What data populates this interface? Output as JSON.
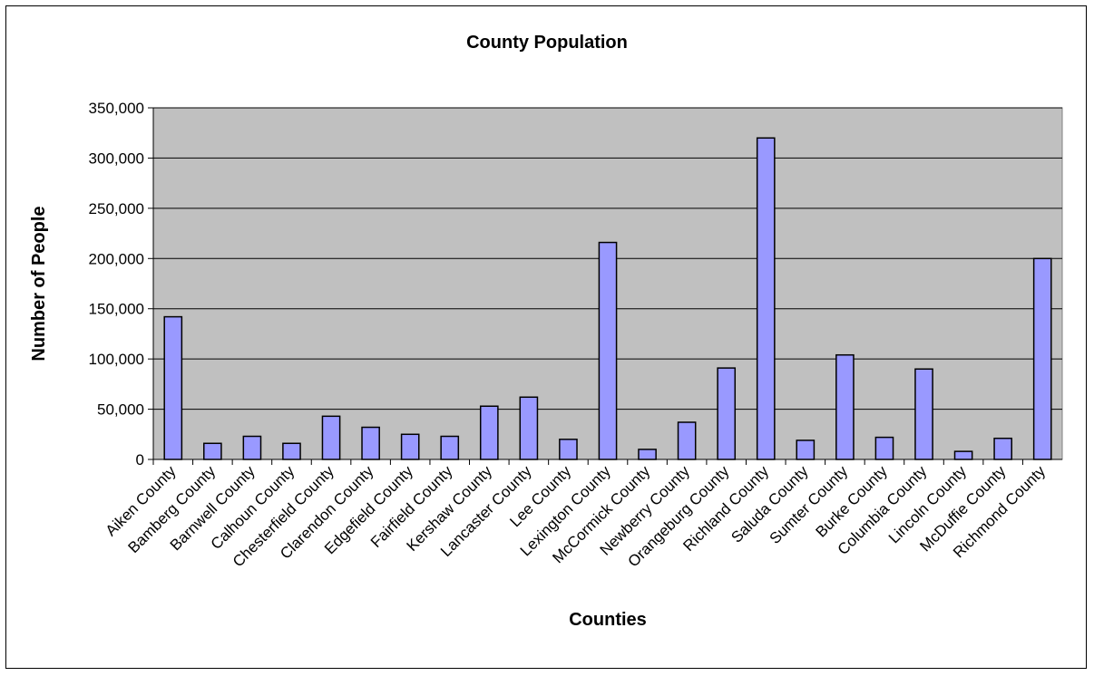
{
  "chart_data": {
    "type": "bar",
    "title": "County Population",
    "xlabel": "Counties",
    "ylabel": "Number of People",
    "ylim": [
      0,
      350000
    ],
    "ytick_values": [
      0,
      50000,
      100000,
      150000,
      200000,
      250000,
      300000,
      350000
    ],
    "ytick_labels": [
      "0",
      "50,000",
      "100,000",
      "150,000",
      "200,000",
      "250,000",
      "300,000",
      "350,000"
    ],
    "categories": [
      "Aiken County",
      "Bamberg County",
      "Barnwell County",
      "Calhoun County",
      "Chesterfield County",
      "Clarendon County",
      "Edgefield County",
      "Fairfield County",
      "Kershaw County",
      "Lancaster County",
      "Lee County",
      "Lexington County",
      "McCormick County",
      "Newberry County",
      "Orangeburg County",
      "Richland County",
      "Saluda County",
      "Sumter County",
      "Burke County",
      "Columbia County",
      "Lincoln County",
      "McDuffie County",
      "Richmond County"
    ],
    "values": [
      142000,
      16000,
      23000,
      16000,
      43000,
      32000,
      25000,
      23000,
      53000,
      62000,
      20000,
      216000,
      10000,
      37000,
      91000,
      320000,
      19000,
      104000,
      22000,
      90000,
      8000,
      21000,
      200000
    ],
    "grid": true,
    "legend": "none",
    "colors": {
      "bar_fill": "#9999ff",
      "bar_stroke": "#000000",
      "plot_background": "#c0c0c0",
      "gridline": "#000000"
    }
  }
}
